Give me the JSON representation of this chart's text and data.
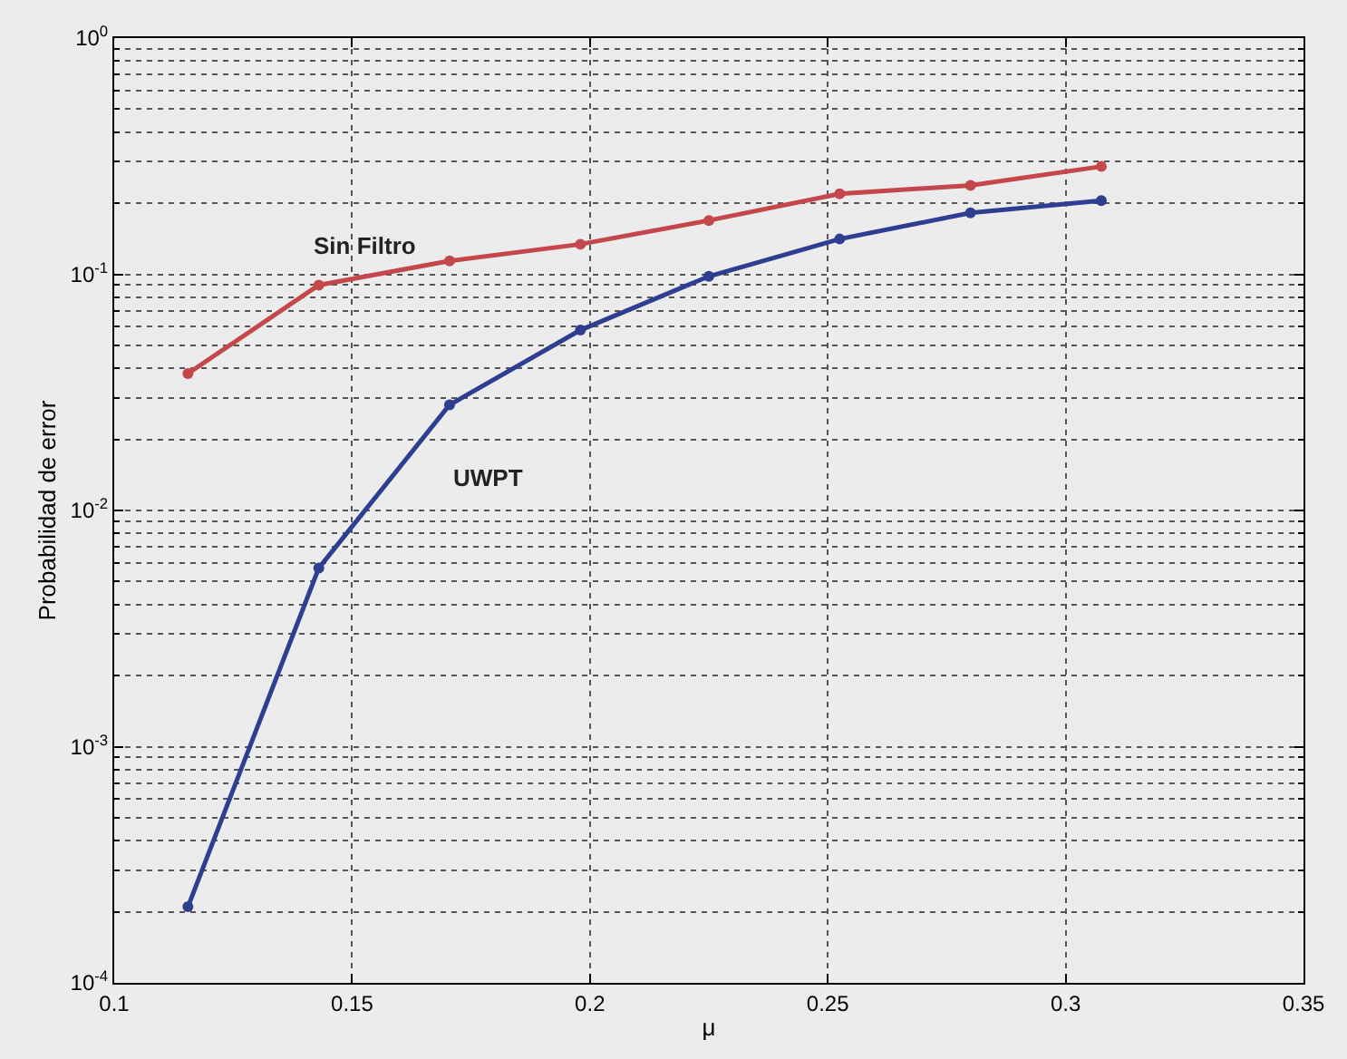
{
  "chart_data": {
    "type": "line",
    "xlabel": "μ",
    "ylabel": "Probabilidad de error",
    "log": "y",
    "grid": true,
    "marker": "circle",
    "line_style": "solid",
    "xlim": [
      0.1,
      0.35
    ],
    "xticks": [
      0.1,
      0.15,
      0.2,
      0.25,
      0.3,
      0.35
    ],
    "ylim": [
      0.0001,
      1
    ],
    "yticks": [
      {
        "value": 0.0001,
        "label": "10$^{-4}$"
      },
      {
        "value": 0.001,
        "label": "10$^{-3}$"
      },
      {
        "value": 0.01,
        "label": "10$^{-2}$"
      },
      {
        "value": 0.1,
        "label": "10$^{-1}$"
      },
      {
        "value": 1,
        "label": "10$^{0}$"
      }
    ],
    "x": [
      0.1155,
      0.143,
      0.1705,
      0.198,
      0.225,
      0.2525,
      0.28,
      0.3075
    ],
    "series": [
      {
        "name": "Sin Filtro",
        "color": "#c4474c",
        "values": [
          0.038,
          0.09,
          0.114,
          0.134,
          0.169,
          0.219,
          0.238,
          0.286
        ]
      },
      {
        "name": "UWPT",
        "color": "#2e3f92",
        "values": [
          0.00021,
          0.0057,
          0.028,
          0.058,
          0.098,
          0.141,
          0.182,
          0.205
        ]
      }
    ]
  }
}
